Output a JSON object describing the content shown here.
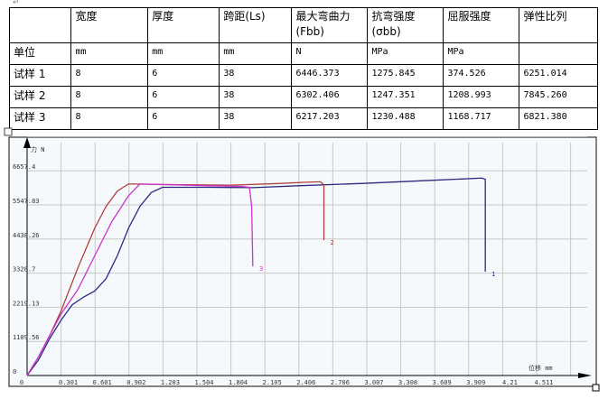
{
  "table": {
    "header": [
      "",
      "宽度",
      "厚度",
      "跨距(Ls)",
      "最大弯曲力(Fbb)",
      "抗弯强度(σbb)",
      "屈服强度",
      "弹性比列"
    ],
    "units": [
      "单位",
      "mm",
      "mm",
      "mm",
      "N",
      "MPa",
      "MPa",
      ""
    ],
    "rows": [
      [
        "试样 1",
        "8",
        "6",
        "38",
        "6446.373",
        "1275.845",
        "374.526",
        "6251.014"
      ],
      [
        "试样 2",
        "8",
        "6",
        "38",
        "6302.406",
        "1247.351",
        "1208.993",
        "7845.260"
      ],
      [
        "试样 3",
        "8",
        "6",
        "38",
        "6217.203",
        "1230.488",
        "1168.717",
        "6821.380"
      ]
    ]
  },
  "chart_data": {
    "type": "line",
    "title": "",
    "xlabel": "位移 mm",
    "ylabel": "力 N",
    "xlim": [
      0,
      4.8
    ],
    "ylim": [
      0,
      7000
    ],
    "grid": true,
    "x_ticks": [
      "0",
      "0.301",
      "0.601",
      "0.902",
      "1.203",
      "1.504",
      "1.804",
      "2.105",
      "2.406",
      "2.706",
      "3.007",
      "3.308",
      "3.609",
      "3.909",
      "4.21",
      "4.511"
    ],
    "y_ticks": [
      "0",
      "1109.56",
      "2219.13",
      "3328.7",
      "4438.26",
      "5547.83",
      "6657.4"
    ],
    "series": [
      {
        "name": "1",
        "color": "#2a2a80",
        "points": [
          [
            0,
            0
          ],
          [
            0.1,
            500
          ],
          [
            0.2,
            1200
          ],
          [
            0.301,
            1800
          ],
          [
            0.4,
            2300
          ],
          [
            0.5,
            2550
          ],
          [
            0.6,
            2750
          ],
          [
            0.7,
            3150
          ],
          [
            0.8,
            3900
          ],
          [
            0.9,
            4800
          ],
          [
            1.0,
            5500
          ],
          [
            1.1,
            5950
          ],
          [
            1.2,
            6120
          ],
          [
            1.6,
            6120
          ],
          [
            2.0,
            6110
          ],
          [
            2.4,
            6170
          ],
          [
            3.0,
            6250
          ],
          [
            3.6,
            6350
          ],
          [
            4.03,
            6420
          ],
          [
            4.06,
            6380
          ],
          [
            4.06,
            3380
          ]
        ]
      },
      {
        "name": "2",
        "color": "#b04040",
        "points": [
          [
            0,
            0
          ],
          [
            0.1,
            600
          ],
          [
            0.2,
            1300
          ],
          [
            0.301,
            2100
          ],
          [
            0.45,
            3500
          ],
          [
            0.6,
            4800
          ],
          [
            0.7,
            5500
          ],
          [
            0.8,
            6000
          ],
          [
            0.9,
            6230
          ],
          [
            1.2,
            6210
          ],
          [
            1.8,
            6190
          ],
          [
            2.2,
            6240
          ],
          [
            2.5,
            6290
          ],
          [
            2.6,
            6300
          ],
          [
            2.63,
            6200
          ],
          [
            2.63,
            4400
          ]
        ]
      },
      {
        "name": "3",
        "color": "#cc33cc",
        "points": [
          [
            0,
            0
          ],
          [
            0.1,
            600
          ],
          [
            0.2,
            1300
          ],
          [
            0.301,
            2000
          ],
          [
            0.45,
            2800
          ],
          [
            0.6,
            3900
          ],
          [
            0.75,
            5000
          ],
          [
            0.9,
            5850
          ],
          [
            1.0,
            6230
          ],
          [
            1.3,
            6200
          ],
          [
            1.6,
            6170
          ],
          [
            1.9,
            6150
          ],
          [
            1.97,
            6120
          ],
          [
            1.99,
            5500
          ],
          [
            2.0,
            3550
          ]
        ]
      }
    ]
  }
}
